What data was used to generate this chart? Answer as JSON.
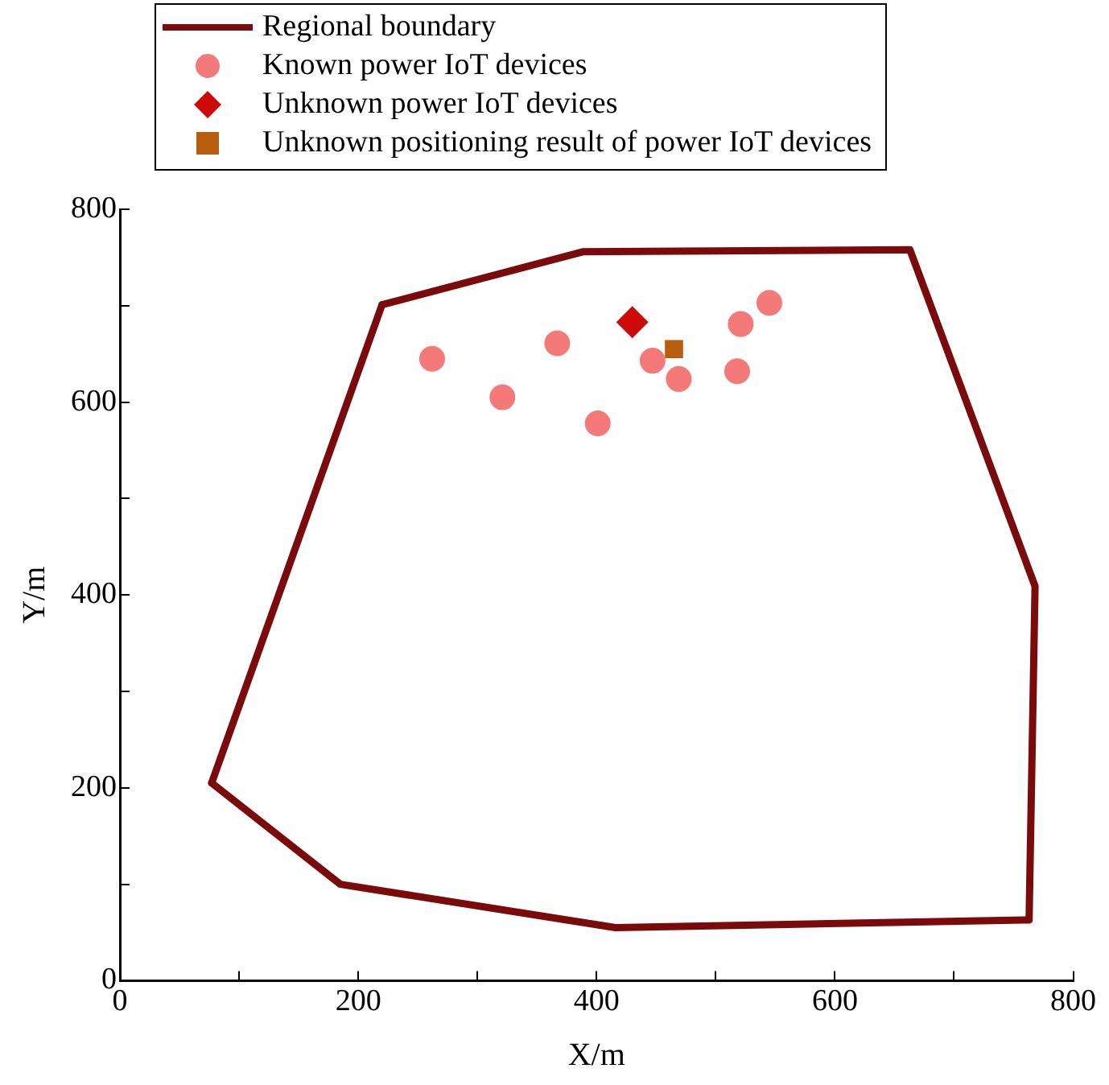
{
  "chart_data": {
    "type": "scatter",
    "xlabel": "X/m",
    "ylabel": "Y/m",
    "xlim": [
      0,
      800
    ],
    "ylim": [
      0,
      800
    ],
    "xticks": [
      0,
      {
        "value": 100,
        "label": null
      },
      200,
      {
        "value": 300,
        "label": null
      },
      400,
      {
        "value": 500,
        "label": null
      },
      600,
      {
        "value": 700,
        "label": null
      },
      800
    ],
    "yticks": [
      0,
      {
        "value": 100,
        "label": null
      },
      200,
      {
        "value": 300,
        "label": null
      },
      400,
      {
        "value": 500,
        "label": null
      },
      600,
      {
        "value": 700,
        "label": null
      },
      800
    ],
    "grid": false,
    "legend": "top",
    "series": [
      {
        "name": "Regional boundary",
        "type": "line",
        "marker": "none",
        "color": "#7b0a0a",
        "x": [
          220,
          389,
          663,
          768,
          763,
          416,
          185,
          77
        ],
        "values": [
          701,
          756,
          758,
          409,
          63,
          55,
          100,
          205
        ]
      },
      {
        "type": "line",
        "marker": "none",
        "color": "#7b0a0a",
        "x": [
          77,
          220
        ],
        "values": [
          205,
          701
        ]
      },
      {
        "name": "Known power IoT devices",
        "type": "scatter",
        "marker": "circle",
        "color": "#f47a7a",
        "x": [
          262,
          321,
          367,
          401,
          447,
          469,
          518,
          521,
          545
        ],
        "values": [
          645,
          605,
          661,
          578,
          643,
          624,
          632,
          681,
          703
        ]
      },
      {
        "name": "Unknown power IoT devices",
        "type": "scatter",
        "marker": "diamond",
        "color": "#cc0a0a",
        "x": [
          430
        ],
        "values": [
          683
        ]
      },
      {
        "name": "Unknown positioning result of power IoT devices",
        "type": "scatter",
        "marker": "square",
        "color": "#b85c0e",
        "x": [
          465
        ],
        "values": [
          655
        ]
      }
    ]
  }
}
